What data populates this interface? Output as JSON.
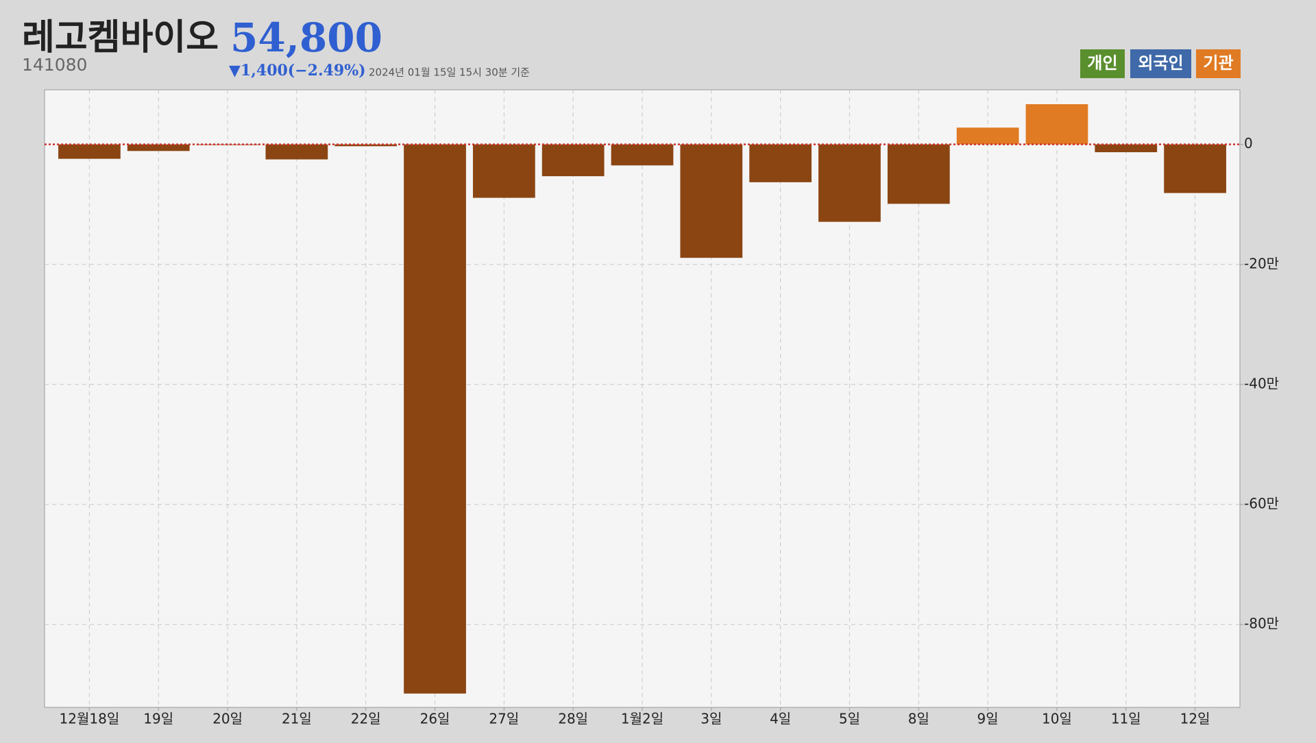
{
  "header": {
    "title": "레고켐바이오",
    "price": "54,800",
    "code": "141080",
    "change": "▼1,400(−2.49%)",
    "timestamp": "2024년 01월 15일 15시 30분 기준"
  },
  "legend_buttons": [
    {
      "name": "개인",
      "color": "#5a8f2e"
    },
    {
      "name": "외국인",
      "color": "#3f69a8"
    },
    {
      "name": "기관",
      "color": "#e07b24"
    }
  ],
  "chart_data": {
    "type": "bar",
    "categories": [
      "12월18일",
      "19일",
      "20일",
      "21일",
      "22일",
      "26일",
      "27일",
      "28일",
      "1월2일",
      "3일",
      "4일",
      "5일",
      "8일",
      "9일",
      "10일",
      "11일",
      "12일"
    ],
    "values": [
      -2.4,
      -1.1,
      -0.1,
      -2.5,
      -0.3,
      -91.5,
      -8.9,
      -5.3,
      -3.5,
      -18.9,
      -6.3,
      -12.9,
      -9.9,
      2.8,
      6.7,
      -1.3,
      -8.1
    ],
    "color": "#e07b24",
    "negative_color": "#8b4513",
    "ylim": [
      -93.8,
      9.1
    ],
    "yticks": [
      0,
      {
        "value": -20,
        "label": "-20만"
      },
      {
        "value": -40,
        "label": "-40만"
      },
      {
        "value": -60,
        "label": "-60만"
      },
      {
        "value": -80,
        "label": "-80만"
      }
    ],
    "grid": true
  }
}
